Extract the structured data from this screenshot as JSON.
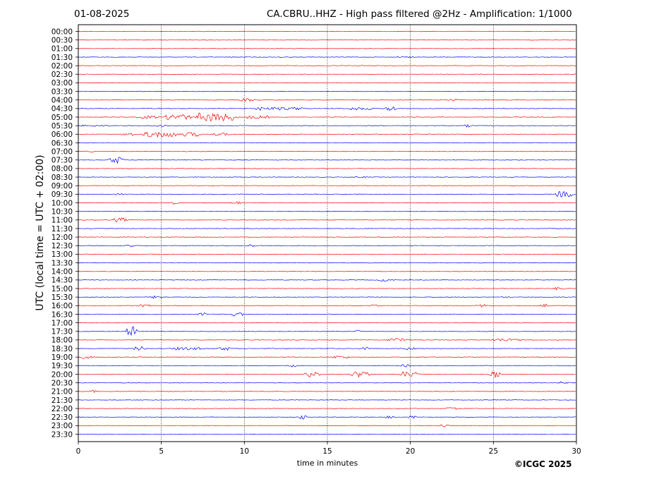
{
  "header": {
    "date": "01-08-2025",
    "title": "CA.CBRU..HHZ - High pass filtered @2Hz - Amplification: 1/1000"
  },
  "footer": {
    "copyright": "©ICGC 2025"
  },
  "chart_data": {
    "type": "line",
    "title": "CA.CBRU..HHZ - High pass filtered @2Hz - Amplification: 1/1000",
    "xlabel": "time in minutes",
    "ylabel": "UTC (local time = UTC + 02:00)",
    "xlim": [
      0,
      30
    ],
    "x_ticks": [
      0,
      5,
      10,
      15,
      20,
      25,
      30
    ],
    "x_tick_labels": [
      "0",
      "5",
      "10",
      "15",
      "20",
      "25",
      "30"
    ],
    "grid": "vertical dotted lines every 5 minutes",
    "trace_colors": [
      "#ff0000",
      "#0000ff"
    ],
    "rows": [
      {
        "label": "00:00",
        "color": "#ff0000",
        "events": []
      },
      {
        "label": "00:30",
        "color": "#ff0000",
        "events": []
      },
      {
        "label": "01:00",
        "color": "#ff0000",
        "events": []
      },
      {
        "label": "01:30",
        "color": "#0000ff",
        "events": [
          [
            12.2,
            0.1,
            1
          ],
          [
            19.7,
            0.8,
            1
          ]
        ]
      },
      {
        "label": "02:00",
        "color": "#ff0000",
        "events": []
      },
      {
        "label": "02:30",
        "color": "#ff0000",
        "events": []
      },
      {
        "label": "03:00",
        "color": "#ff0000",
        "events": []
      },
      {
        "label": "03:30",
        "color": "#0000ff",
        "events": []
      },
      {
        "label": "04:00",
        "color": "#ff0000",
        "events": [
          [
            10.2,
            0.7,
            2
          ],
          [
            22.5,
            0.4,
            2
          ]
        ]
      },
      {
        "label": "04:30",
        "color": "#0000ff",
        "events": [
          [
            10.9,
            0.3,
            3
          ],
          [
            12.5,
            2.0,
            2
          ],
          [
            17.0,
            1.2,
            2
          ],
          [
            18.8,
            0.3,
            4
          ]
        ]
      },
      {
        "label": "05:00",
        "color": "#ff0000",
        "events": [
          [
            4.2,
            1.0,
            2
          ],
          [
            6.0,
            1.2,
            4
          ],
          [
            8.0,
            1.6,
            6
          ],
          [
            9.2,
            0.4,
            5
          ],
          [
            10.8,
            1.2,
            2
          ]
        ]
      },
      {
        "label": "05:30",
        "color": "#0000ff",
        "events": [
          [
            0.5,
            3.0,
            1
          ],
          [
            5.0,
            0.3,
            2
          ],
          [
            23.5,
            0.2,
            2
          ]
        ]
      },
      {
        "label": "06:00",
        "color": "#ff0000",
        "events": [
          [
            3.0,
            0.5,
            2
          ],
          [
            5.0,
            1.8,
            4
          ],
          [
            6.8,
            0.8,
            3
          ],
          [
            8.5,
            1.0,
            2
          ]
        ]
      },
      {
        "label": "06:30",
        "color": "#0000ff",
        "events": []
      },
      {
        "label": "07:00",
        "color": "#ff0000",
        "events": [
          [
            0.7,
            0.4,
            1
          ]
        ]
      },
      {
        "label": "07:30",
        "color": "#0000ff",
        "events": [
          [
            2.3,
            0.5,
            5
          ]
        ]
      },
      {
        "label": "08:00",
        "color": "#ff0000",
        "events": [
          [
            8.6,
            0.2,
            1
          ]
        ]
      },
      {
        "label": "08:30",
        "color": "#0000ff",
        "events": [
          [
            17.0,
            0.5,
            1
          ]
        ]
      },
      {
        "label": "09:00",
        "color": "#ff0000",
        "events": []
      },
      {
        "label": "09:30",
        "color": "#0000ff",
        "events": [
          [
            2.5,
            0.4,
            1
          ],
          [
            29.3,
            0.8,
            4
          ]
        ]
      },
      {
        "label": "10:00",
        "color": "#ff0000",
        "events": [
          [
            5.7,
            0.2,
            2
          ],
          [
            9.5,
            0.4,
            2
          ]
        ]
      },
      {
        "label": "10:30",
        "color": "#0000ff",
        "events": []
      },
      {
        "label": "11:00",
        "color": "#ff0000",
        "events": [
          [
            2.5,
            0.5,
            3
          ]
        ]
      },
      {
        "label": "11:30",
        "color": "#0000ff",
        "events": []
      },
      {
        "label": "12:00",
        "color": "#ff0000",
        "events": []
      },
      {
        "label": "12:30",
        "color": "#0000ff",
        "events": [
          [
            3.1,
            0.2,
            2
          ],
          [
            10.4,
            0.3,
            2
          ]
        ]
      },
      {
        "label": "13:00",
        "color": "#ff0000",
        "events": []
      },
      {
        "label": "13:30",
        "color": "#0000ff",
        "events": []
      },
      {
        "label": "14:00",
        "color": "#ff0000",
        "events": []
      },
      {
        "label": "14:30",
        "color": "#0000ff",
        "events": [
          [
            18.5,
            0.6,
            2
          ]
        ]
      },
      {
        "label": "15:00",
        "color": "#ff0000",
        "events": [
          [
            29.0,
            0.4,
            2
          ]
        ]
      },
      {
        "label": "15:30",
        "color": "#0000ff",
        "events": [
          [
            4.8,
            0.6,
            2
          ],
          [
            25.8,
            0.3,
            1
          ]
        ]
      },
      {
        "label": "16:00",
        "color": "#ff0000",
        "events": [
          [
            4.0,
            0.4,
            2
          ],
          [
            17.8,
            0.2,
            2
          ],
          [
            24.3,
            0.3,
            2
          ],
          [
            28.0,
            0.2,
            3
          ]
        ]
      },
      {
        "label": "16:30",
        "color": "#0000ff",
        "events": [
          [
            7.5,
            0.3,
            2
          ],
          [
            9.6,
            0.4,
            3
          ]
        ]
      },
      {
        "label": "17:00",
        "color": "#ff0000",
        "events": []
      },
      {
        "label": "17:30",
        "color": "#0000ff",
        "events": [
          [
            3.2,
            0.3,
            7
          ],
          [
            16.9,
            0.1,
            2
          ]
        ]
      },
      {
        "label": "18:00",
        "color": "#ff0000",
        "events": [
          [
            19.2,
            0.8,
            3
          ],
          [
            25.8,
            1.5,
            2
          ]
        ]
      },
      {
        "label": "18:30",
        "color": "#0000ff",
        "events": [
          [
            3.7,
            0.4,
            3
          ],
          [
            6.5,
            1.5,
            2
          ],
          [
            8.8,
            0.3,
            3
          ],
          [
            17.3,
            0.2,
            3
          ],
          [
            20.0,
            0.3,
            2
          ]
        ]
      },
      {
        "label": "19:00",
        "color": "#ff0000",
        "events": [
          [
            0.5,
            0.4,
            2
          ],
          [
            15.8,
            0.8,
            2
          ]
        ]
      },
      {
        "label": "19:30",
        "color": "#0000ff",
        "events": [
          [
            13.0,
            0.2,
            2
          ],
          [
            19.7,
            0.2,
            2
          ]
        ]
      },
      {
        "label": "20:00",
        "color": "#ff0000",
        "events": [
          [
            14.1,
            0.5,
            4
          ],
          [
            17.0,
            0.8,
            4
          ],
          [
            20.0,
            0.8,
            4
          ],
          [
            25.1,
            0.2,
            5
          ]
        ]
      },
      {
        "label": "20:30",
        "color": "#0000ff",
        "events": [
          [
            29.3,
            0.5,
            2
          ]
        ]
      },
      {
        "label": "21:00",
        "color": "#ff0000",
        "events": [
          [
            0.9,
            0.1,
            2
          ]
        ]
      },
      {
        "label": "21:30",
        "color": "#0000ff",
        "events": []
      },
      {
        "label": "22:00",
        "color": "#ff0000",
        "events": [
          [
            22.5,
            0.5,
            2
          ]
        ]
      },
      {
        "label": "22:30",
        "color": "#0000ff",
        "events": [
          [
            13.5,
            0.2,
            3
          ],
          [
            18.8,
            0.3,
            2
          ],
          [
            20.1,
            0.3,
            2
          ]
        ]
      },
      {
        "label": "23:00",
        "color": "#ff0000",
        "events": [
          [
            22.0,
            0.3,
            2
          ]
        ]
      },
      {
        "label": "23:30",
        "color": "#0000ff",
        "events": []
      }
    ]
  }
}
